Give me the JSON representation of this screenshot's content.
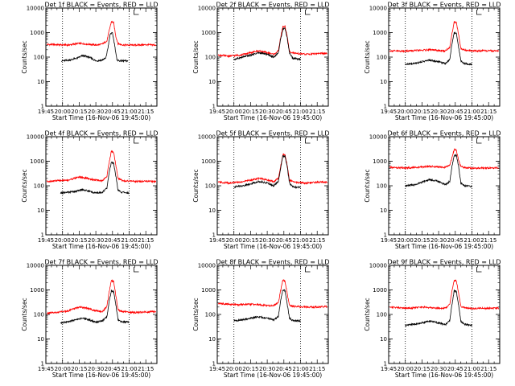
{
  "colors": {
    "background": "#ffffff",
    "events": "#000000",
    "lld": "#ff0000",
    "axes": "#000000"
  },
  "chart_data": [
    {
      "type": "line",
      "title": "Det 1f BLACK = Events, RED = LLD",
      "xlabel": "Start Time (16-Nov-06 19:45:00)",
      "ylabel": "Counts/sec",
      "xlim": [
        "19:45",
        "21:25"
      ],
      "ylim": [
        1,
        10000
      ],
      "yscale": "log",
      "grid": false,
      "xticks": [
        "19:45",
        "20:00",
        "20:15",
        "20:30",
        "20:45",
        "21:00",
        "21:15"
      ],
      "yticks": [
        "1",
        "10",
        "100",
        "1000",
        "10000"
      ],
      "vlines": [
        "20:00",
        "21:00"
      ],
      "series": [
        {
          "name": "Events",
          "color": "#000000",
          "x": [
            "19:59",
            "20:06",
            "20:13",
            "20:18",
            "20:24",
            "20:30",
            "20:35",
            "20:39",
            "20:41",
            "20:43",
            "20:45",
            "20:47",
            "20:49",
            "20:52",
            "20:59"
          ],
          "y": [
            70,
            75,
            90,
            115,
            100,
            70,
            75,
            90,
            250,
            900,
            950,
            300,
            75,
            70,
            70
          ]
        },
        {
          "name": "LLD",
          "color": "#ff0000",
          "x": [
            "19:46",
            "19:55",
            "20:05",
            "20:15",
            "20:25",
            "20:30",
            "20:35",
            "20:40",
            "20:42",
            "20:44",
            "20:46",
            "20:48",
            "20:50",
            "20:55",
            "21:05",
            "21:15",
            "21:24"
          ],
          "y": [
            330,
            320,
            310,
            360,
            330,
            310,
            330,
            450,
            1200,
            2800,
            2500,
            700,
            350,
            310,
            310,
            320,
            310
          ]
        }
      ]
    },
    {
      "type": "line",
      "title": "Det 2f BLACK = Events, RED = LLD",
      "xlabel": "Start Time (16-Nov-06 19:45:00)",
      "ylabel": "Counts/sec",
      "xlim": [
        "19:45",
        "21:25"
      ],
      "ylim": [
        1,
        10000
      ],
      "yscale": "log",
      "grid": false,
      "xticks": [
        "19:45",
        "20:00",
        "20:15",
        "20:30",
        "20:45",
        "21:00",
        "21:15"
      ],
      "yticks": [
        "1",
        "10",
        "100",
        "1000",
        "10000"
      ],
      "vlines": [
        "20:00",
        "21:00"
      ],
      "series": [
        {
          "name": "Events",
          "color": "#000000",
          "x": [
            "20:00",
            "20:08",
            "20:15",
            "20:22",
            "20:30",
            "20:36",
            "20:40",
            "20:42",
            "20:44",
            "20:46",
            "20:48",
            "20:50",
            "20:53",
            "21:00"
          ],
          "y": [
            80,
            100,
            120,
            150,
            130,
            100,
            150,
            500,
            1400,
            1500,
            600,
            150,
            90,
            80
          ]
        },
        {
          "name": "LLD",
          "color": "#ff0000",
          "x": [
            "19:46",
            "19:55",
            "20:05",
            "20:15",
            "20:22",
            "20:30",
            "20:36",
            "20:40",
            "20:42",
            "20:44",
            "20:46",
            "20:48",
            "20:50",
            "20:55",
            "21:05",
            "21:15",
            "21:24"
          ],
          "y": [
            120,
            110,
            120,
            150,
            180,
            150,
            130,
            180,
            600,
            1700,
            1800,
            700,
            170,
            140,
            130,
            140,
            140
          ]
        }
      ]
    },
    {
      "type": "line",
      "title": "Det 3f BLACK = Events, RED = LLD",
      "xlabel": "Start Time (16-Nov-06 19:45:00)",
      "ylabel": "Counts/sec",
      "xlim": [
        "19:45",
        "21:25"
      ],
      "ylim": [
        1,
        10000
      ],
      "yscale": "log",
      "grid": false,
      "xticks": [
        "19:45",
        "20:00",
        "20:15",
        "20:30",
        "20:45",
        "21:00",
        "21:15"
      ],
      "yticks": [
        "1",
        "10",
        "100",
        "1000",
        "10000"
      ],
      "vlines": [
        "20:00",
        "21:00"
      ],
      "series": [
        {
          "name": "Events",
          "color": "#000000",
          "x": [
            "20:00",
            "20:08",
            "20:15",
            "20:22",
            "20:30",
            "20:36",
            "20:40",
            "20:42",
            "20:44",
            "20:46",
            "20:48",
            "20:50",
            "20:53",
            "21:00"
          ],
          "y": [
            50,
            55,
            65,
            75,
            65,
            55,
            80,
            350,
            1000,
            900,
            250,
            70,
            55,
            50
          ]
        },
        {
          "name": "LLD",
          "color": "#ff0000",
          "x": [
            "19:46",
            "19:55",
            "20:05",
            "20:15",
            "20:22",
            "20:30",
            "20:36",
            "20:40",
            "20:42",
            "20:44",
            "20:46",
            "20:48",
            "20:50",
            "20:55",
            "21:05",
            "21:15",
            "21:24"
          ],
          "y": [
            180,
            175,
            180,
            190,
            200,
            185,
            180,
            250,
            900,
            2800,
            2500,
            800,
            220,
            185,
            180,
            180,
            180
          ]
        }
      ]
    },
    {
      "type": "line",
      "title": "Det 4f BLACK = Events, RED = LLD",
      "xlabel": "Start Time (16-Nov-06 19:45:00)",
      "ylabel": "Counts/sec",
      "xlim": [
        "19:45",
        "21:25"
      ],
      "ylim": [
        1,
        10000
      ],
      "yscale": "log",
      "grid": false,
      "xticks": [
        "19:45",
        "20:00",
        "20:15",
        "20:30",
        "20:45",
        "21:00",
        "21:15"
      ],
      "yticks": [
        "1",
        "10",
        "100",
        "1000",
        "10000"
      ],
      "vlines": [
        "20:00",
        "21:00"
      ],
      "series": [
        {
          "name": "Events",
          "color": "#000000",
          "x": [
            "19:58",
            "20:05",
            "20:12",
            "20:18",
            "20:24",
            "20:30",
            "20:36",
            "20:40",
            "20:42",
            "20:44",
            "20:46",
            "20:48",
            "20:50",
            "20:53",
            "21:00"
          ],
          "y": [
            50,
            55,
            60,
            70,
            60,
            50,
            55,
            80,
            350,
            900,
            850,
            250,
            65,
            55,
            50
          ]
        },
        {
          "name": "LLD",
          "color": "#ff0000",
          "x": [
            "19:46",
            "19:55",
            "20:05",
            "20:15",
            "20:22",
            "20:30",
            "20:36",
            "20:40",
            "20:42",
            "20:44",
            "20:46",
            "20:48",
            "20:50",
            "20:55",
            "21:05",
            "21:15",
            "21:24"
          ],
          "y": [
            150,
            160,
            170,
            230,
            200,
            170,
            160,
            250,
            900,
            2600,
            2300,
            700,
            200,
            160,
            150,
            150,
            150
          ]
        }
      ]
    },
    {
      "type": "line",
      "title": "Det 5f BLACK = Events, RED = LLD",
      "xlabel": "Start Time (16-Nov-06 19:45:00)",
      "ylabel": "Counts/sec",
      "xlim": [
        "19:45",
        "21:25"
      ],
      "ylim": [
        1,
        10000
      ],
      "yscale": "log",
      "grid": false,
      "xticks": [
        "19:45",
        "20:00",
        "20:15",
        "20:30",
        "20:45",
        "21:00",
        "21:15"
      ],
      "yticks": [
        "1",
        "10",
        "100",
        "1000",
        "10000"
      ],
      "vlines": [
        "20:00",
        "21:00"
      ],
      "series": [
        {
          "name": "Events",
          "color": "#000000",
          "x": [
            "20:00",
            "20:08",
            "20:15",
            "20:22",
            "20:30",
            "20:36",
            "20:40",
            "20:42",
            "20:44",
            "20:46",
            "20:48",
            "20:50",
            "20:53",
            "21:00"
          ],
          "y": [
            90,
            100,
            120,
            150,
            130,
            100,
            150,
            500,
            1600,
            1600,
            600,
            130,
            90,
            85
          ]
        },
        {
          "name": "LLD",
          "color": "#ff0000",
          "x": [
            "19:46",
            "19:55",
            "20:05",
            "20:15",
            "20:22",
            "20:30",
            "20:36",
            "20:40",
            "20:42",
            "20:44",
            "20:46",
            "20:48",
            "20:50",
            "20:55",
            "21:05",
            "21:15",
            "21:24"
          ],
          "y": [
            140,
            130,
            140,
            170,
            200,
            170,
            150,
            200,
            600,
            1800,
            1900,
            700,
            170,
            140,
            130,
            140,
            140
          ]
        }
      ]
    },
    {
      "type": "line",
      "title": "Det 6f BLACK = Events, RED = LLD",
      "xlabel": "Start Time (16-Nov-06 19:45:00)",
      "ylabel": "Counts/sec",
      "xlim": [
        "19:45",
        "21:25"
      ],
      "ylim": [
        1,
        10000
      ],
      "yscale": "log",
      "grid": false,
      "xticks": [
        "19:45",
        "20:00",
        "20:15",
        "20:30",
        "20:45",
        "21:00",
        "21:15"
      ],
      "yticks": [
        "1",
        "10",
        "100",
        "1000",
        "10000"
      ],
      "vlines": [
        "20:00",
        "21:00"
      ],
      "series": [
        {
          "name": "Events",
          "color": "#000000",
          "x": [
            "20:00",
            "20:08",
            "20:15",
            "20:22",
            "20:30",
            "20:36",
            "20:40",
            "20:42",
            "20:44",
            "20:46",
            "20:48",
            "20:50",
            "20:53",
            "21:00"
          ],
          "y": [
            100,
            110,
            140,
            180,
            150,
            110,
            150,
            600,
            1700,
            1800,
            600,
            130,
            100,
            95
          ]
        },
        {
          "name": "LLD",
          "color": "#ff0000",
          "x": [
            "19:46",
            "19:55",
            "20:05",
            "20:15",
            "20:22",
            "20:30",
            "20:36",
            "20:40",
            "20:42",
            "20:44",
            "20:46",
            "20:48",
            "20:50",
            "20:55",
            "21:05",
            "21:15",
            "21:24"
          ],
          "y": [
            560,
            540,
            540,
            580,
            620,
            580,
            560,
            700,
            1400,
            3000,
            2800,
            1100,
            600,
            540,
            520,
            530,
            540
          ]
        }
      ]
    },
    {
      "type": "line",
      "title": "Det 7f BLACK = Events, RED = LLD",
      "xlabel": "Start Time (16-Nov-06 19:45:00)",
      "ylabel": "Counts/sec",
      "xlim": [
        "19:45",
        "21:25"
      ],
      "ylim": [
        1,
        10000
      ],
      "yscale": "log",
      "grid": false,
      "xticks": [
        "19:45",
        "20:00",
        "20:15",
        "20:30",
        "20:45",
        "21:00",
        "21:15"
      ],
      "yticks": [
        "1",
        "10",
        "100",
        "1000",
        "10000"
      ],
      "vlines": [
        "20:00",
        "21:00"
      ],
      "series": [
        {
          "name": "Events",
          "color": "#000000",
          "x": [
            "19:58",
            "20:05",
            "20:12",
            "20:18",
            "20:24",
            "20:30",
            "20:36",
            "20:40",
            "20:42",
            "20:44",
            "20:46",
            "20:48",
            "20:50",
            "20:53",
            "21:00"
          ],
          "y": [
            45,
            50,
            60,
            70,
            60,
            48,
            55,
            80,
            350,
            900,
            850,
            250,
            60,
            50,
            50
          ]
        },
        {
          "name": "LLD",
          "color": "#ff0000",
          "x": [
            "19:46",
            "19:55",
            "20:05",
            "20:15",
            "20:22",
            "20:30",
            "20:36",
            "20:40",
            "20:42",
            "20:44",
            "20:46",
            "20:48",
            "20:50",
            "20:55",
            "21:05",
            "21:15",
            "21:24"
          ],
          "y": [
            110,
            120,
            140,
            200,
            180,
            140,
            130,
            220,
            800,
            2400,
            2200,
            600,
            150,
            130,
            120,
            125,
            130
          ]
        }
      ]
    },
    {
      "type": "line",
      "title": "Det 8f BLACK = Events, RED = LLD",
      "xlabel": "Start Time (16-Nov-06 19:45:00)",
      "ylabel": "Counts/sec",
      "xlim": [
        "19:45",
        "21:25"
      ],
      "ylim": [
        1,
        10000
      ],
      "yscale": "log",
      "grid": false,
      "xticks": [
        "19:45",
        "20:00",
        "20:15",
        "20:30",
        "20:45",
        "21:00",
        "21:15"
      ],
      "yticks": [
        "1",
        "10",
        "100",
        "1000",
        "10000"
      ],
      "vlines": [
        "20:00",
        "21:00"
      ],
      "series": [
        {
          "name": "Events",
          "color": "#000000",
          "x": [
            "20:00",
            "20:08",
            "20:15",
            "20:22",
            "20:30",
            "20:36",
            "20:40",
            "20:42",
            "20:44",
            "20:46",
            "20:48",
            "20:50",
            "20:53",
            "21:00"
          ],
          "y": [
            55,
            60,
            70,
            80,
            70,
            60,
            80,
            350,
            1000,
            950,
            260,
            70,
            55,
            55
          ]
        },
        {
          "name": "LLD",
          "color": "#ff0000",
          "x": [
            "19:46",
            "19:55",
            "20:05",
            "20:15",
            "20:22",
            "20:30",
            "20:36",
            "20:40",
            "20:42",
            "20:44",
            "20:46",
            "20:48",
            "20:50",
            "20:55",
            "21:05",
            "21:15",
            "21:24"
          ],
          "y": [
            280,
            260,
            250,
            260,
            250,
            230,
            230,
            300,
            900,
            2500,
            2300,
            700,
            230,
            210,
            200,
            200,
            210
          ]
        }
      ]
    },
    {
      "type": "line",
      "title": "Det 9f BLACK = Events, RED = LLD",
      "xlabel": "Start Time (16-Nov-06 19:45:00)",
      "ylabel": "Counts/sec",
      "xlim": [
        "19:45",
        "21:25"
      ],
      "ylim": [
        1,
        10000
      ],
      "yscale": "log",
      "grid": false,
      "xticks": [
        "19:45",
        "20:00",
        "20:15",
        "20:30",
        "20:45",
        "21:00",
        "21:15"
      ],
      "yticks": [
        "1",
        "10",
        "100",
        "1000",
        "10000"
      ],
      "vlines": [
        "20:00",
        "21:00"
      ],
      "series": [
        {
          "name": "Events",
          "color": "#000000",
          "x": [
            "20:00",
            "20:08",
            "20:15",
            "20:22",
            "20:30",
            "20:36",
            "20:40",
            "20:42",
            "20:44",
            "20:46",
            "20:48",
            "20:50",
            "20:53",
            "21:00"
          ],
          "y": [
            35,
            40,
            45,
            55,
            45,
            38,
            55,
            250,
            900,
            850,
            230,
            55,
            40,
            35
          ]
        },
        {
          "name": "LLD",
          "color": "#ff0000",
          "x": [
            "19:46",
            "19:55",
            "20:05",
            "20:15",
            "20:22",
            "20:30",
            "20:36",
            "20:40",
            "20:42",
            "20:44",
            "20:46",
            "20:48",
            "20:50",
            "20:55",
            "21:05",
            "21:15",
            "21:24"
          ],
          "y": [
            200,
            190,
            180,
            200,
            190,
            180,
            180,
            250,
            900,
            2500,
            2300,
            700,
            210,
            180,
            175,
            180,
            180
          ]
        }
      ]
    }
  ]
}
